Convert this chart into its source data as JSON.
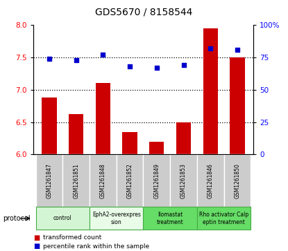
{
  "title": "GDS5670 / 8158544",
  "samples": [
    "GSM1261847",
    "GSM1261851",
    "GSM1261848",
    "GSM1261852",
    "GSM1261849",
    "GSM1261853",
    "GSM1261846",
    "GSM1261850"
  ],
  "transformed_count": [
    6.88,
    6.62,
    7.1,
    6.35,
    6.2,
    6.5,
    7.95,
    7.5
  ],
  "percentile_rank": [
    74,
    73,
    77,
    68,
    67,
    69,
    82,
    81
  ],
  "ylim_left": [
    6.0,
    8.0
  ],
  "ylim_right": [
    0,
    100
  ],
  "yticks_left": [
    6.0,
    6.5,
    7.0,
    7.5,
    8.0
  ],
  "yticks_right": [
    0,
    25,
    50,
    75,
    100
  ],
  "proto_groups": [
    {
      "label": "control",
      "start": 0,
      "end": 1,
      "color": "#d4f5d4"
    },
    {
      "label": "EphA2-overexpres\nsion",
      "start": 2,
      "end": 3,
      "color": "#e8fce8"
    },
    {
      "label": "Ilomastat\ntreatment",
      "start": 4,
      "end": 5,
      "color": "#66dd66"
    },
    {
      "label": "Rho activator Calp\neptin treatment",
      "start": 6,
      "end": 7,
      "color": "#66dd66"
    }
  ],
  "bar_color": "#cc0000",
  "dot_color": "#0000cc",
  "bar_width": 0.55,
  "sample_area_color": "#cccccc",
  "dotted_gridlines": [
    6.5,
    7.0,
    7.5
  ]
}
